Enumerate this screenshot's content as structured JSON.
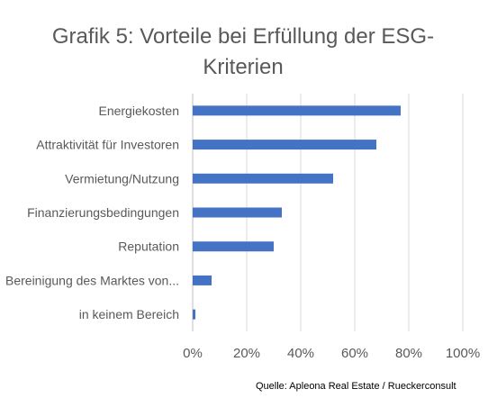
{
  "chart_data": {
    "type": "bar",
    "orientation": "horizontal",
    "title": "Grafik 5: Vorteile bei Erfüllung der ESG-Kriterien",
    "categories": [
      "Energiekosten",
      "Attraktivität für Investoren",
      "Vermietung/Nutzung",
      "Finanzierungsbedingungen",
      "Reputation",
      "Bereinigung des Marktes von...",
      "in keinem Bereich"
    ],
    "values": [
      77,
      68,
      52,
      33,
      30,
      7,
      1
    ],
    "xlim": [
      0,
      100
    ],
    "xticks": [
      0,
      20,
      40,
      60,
      80,
      100
    ],
    "xtick_labels": [
      "0%",
      "20%",
      "40%",
      "60%",
      "80%",
      "100%"
    ],
    "grid": true,
    "legend": "none",
    "bar_color": "#4472c4",
    "source": "Quelle: Apleona Real Estate / Rueckerconsult"
  }
}
